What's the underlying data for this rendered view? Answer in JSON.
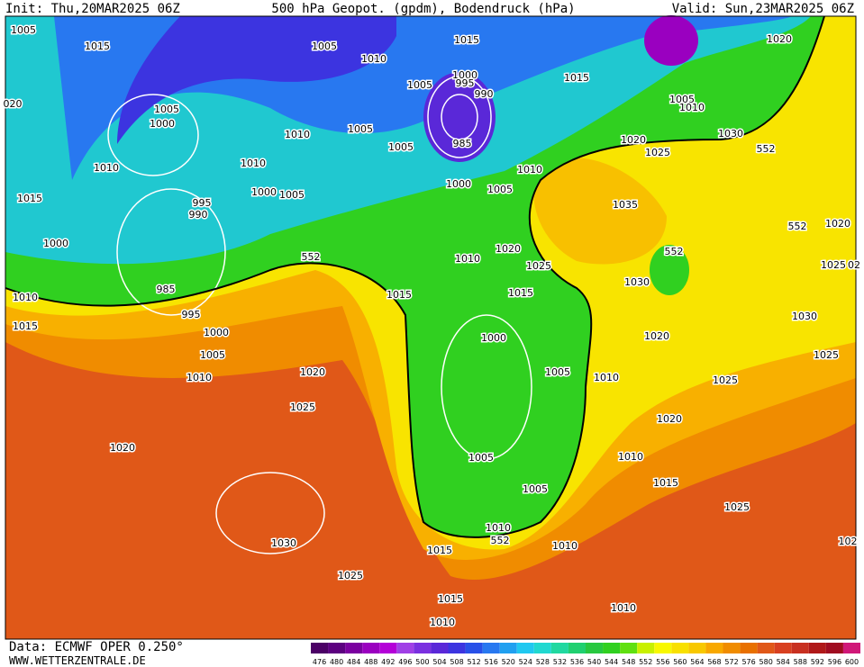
{
  "header": {
    "init": "Init: Thu,20MAR2025 06Z",
    "title": "500 hPa Geopot. (gpdm), Bodendruck (hPa)",
    "valid": "Valid: Sun,23MAR2025 06Z"
  },
  "isobar_labels": [
    "1005",
    "1015",
    "1005",
    "1010",
    "1015",
    "1020",
    "020",
    "1005",
    "1000",
    "1010",
    "1010",
    "1005",
    "1005",
    "1000",
    "995",
    "990",
    "1005",
    "985",
    "1010",
    "1000",
    "1005",
    "1000",
    "1005",
    "1010",
    "1015",
    "1005",
    "1010",
    "1020",
    "1025",
    "1030",
    "552",
    "1015",
    "995",
    "990",
    "1035",
    "552",
    "1020",
    "1000",
    "552",
    "1020",
    "1025",
    "1010",
    "552",
    "1025",
    "02",
    "985",
    "1010",
    "1015",
    "1015",
    "1030",
    "995",
    "1015",
    "1030",
    "1000",
    "1000",
    "1020",
    "1005",
    "1025",
    "1010",
    "1020",
    "1005",
    "1010",
    "1025",
    "1025",
    "1020",
    "1020",
    "1005",
    "1010",
    "1005",
    "1015",
    "1025",
    "1030",
    "1010",
    "552",
    "1010",
    "1015",
    "102",
    "1025",
    "1015",
    "1010",
    "1010"
  ],
  "colorbar": {
    "values": [
      476,
      480,
      484,
      488,
      492,
      496,
      500,
      504,
      508,
      512,
      516,
      520,
      524,
      528,
      532,
      536,
      540,
      544,
      548,
      552,
      556,
      560,
      564,
      568,
      572,
      576,
      580,
      584,
      588,
      592,
      596,
      600
    ],
    "colors": [
      "#4b0066",
      "#5c0080",
      "#7a00a0",
      "#9a00c0",
      "#b400d8",
      "#a040e6",
      "#7a30e0",
      "#5a28d8",
      "#3c34e0",
      "#2850e8",
      "#2878f0",
      "#20a0f0",
      "#20c8f0",
      "#20d8d0",
      "#20d8a0",
      "#20d070",
      "#28c840",
      "#30d020",
      "#60e010",
      "#c8f000",
      "#f8f800",
      "#f8e000",
      "#f8c800",
      "#f8a800",
      "#f08c00",
      "#e87000",
      "#e05818",
      "#d84020",
      "#c83020",
      "#b01818",
      "#a00c20",
      "#d01878"
    ]
  },
  "footer": {
    "source": "Data: ECMWF OPER 0.250°",
    "site": "WWW.WETTERZENTRALE.DE"
  }
}
